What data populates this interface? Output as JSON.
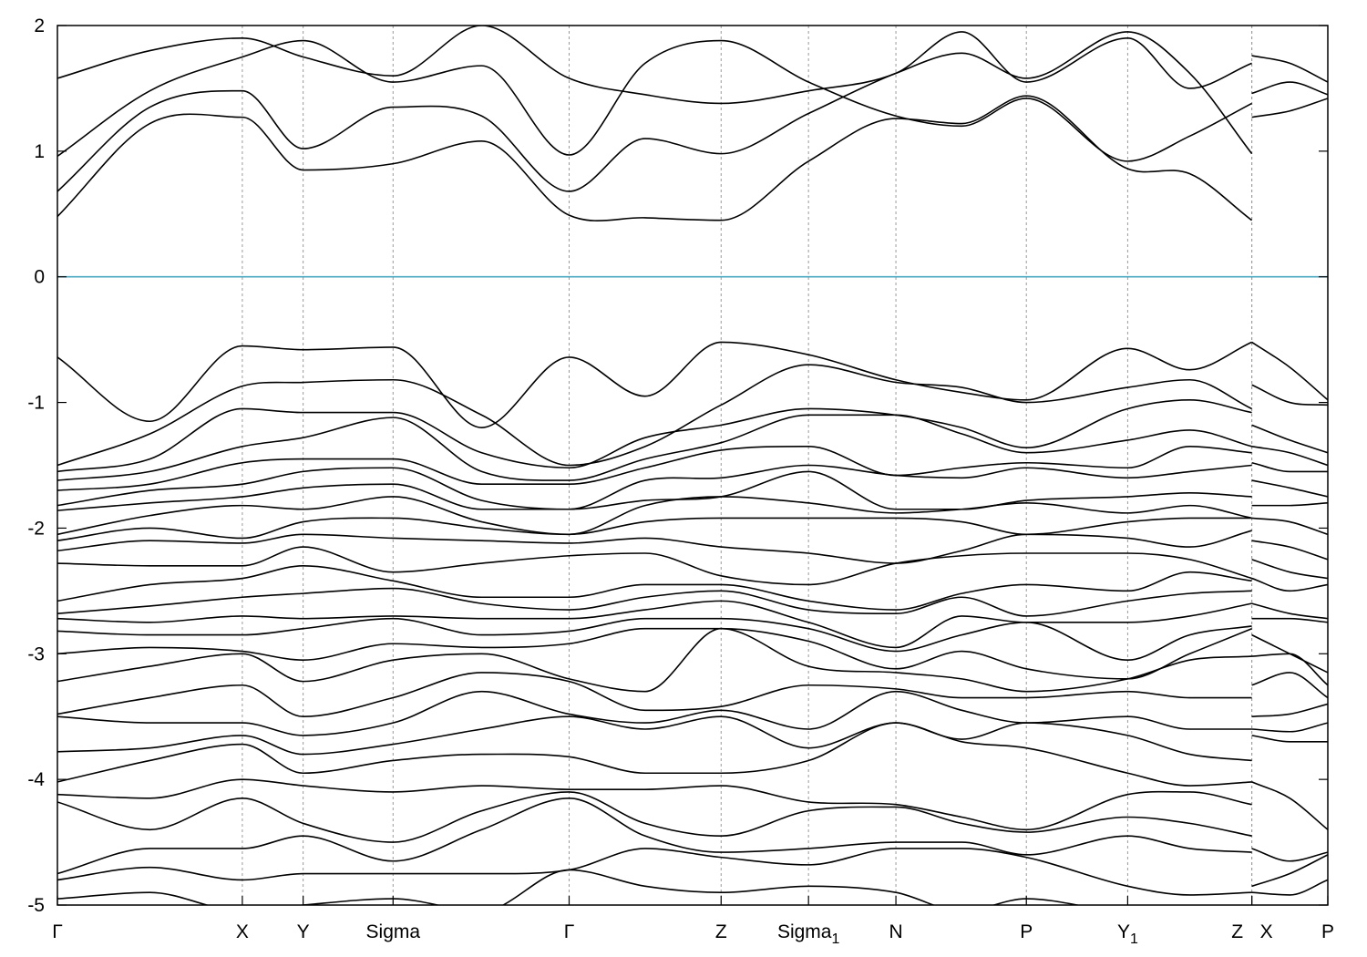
{
  "chart_data": {
    "type": "line",
    "title": "",
    "xlabel": "",
    "ylabel": "",
    "ylim": [
      -5,
      2
    ],
    "yticks": [
      -5,
      -4,
      -3,
      -2,
      -1,
      0,
      1,
      2
    ],
    "grid": "vertical dashed lines at high-symmetry points",
    "legend": "none",
    "colors": {
      "bands": "#000000",
      "fermi_level": "#4aa8c0",
      "kpoint_lines": "#9a9a9a"
    },
    "kpoints": [
      {
        "label": "Γ",
        "sub": "",
        "x": 0.0
      },
      {
        "label": "X",
        "sub": "",
        "x": 1.46
      },
      {
        "label": "Y",
        "sub": "",
        "x": 1.94
      },
      {
        "label": "Sigma",
        "sub": "",
        "x": 2.65
      },
      {
        "label": "Γ",
        "sub": "",
        "x": 4.04
      },
      {
        "label": "Z",
        "sub": "",
        "x": 5.24
      },
      {
        "label": "Sigma",
        "sub": "1",
        "x": 5.93
      },
      {
        "label": "N",
        "sub": "",
        "x": 6.62
      },
      {
        "label": "P",
        "sub": "",
        "x": 7.65
      },
      {
        "label": "Y",
        "sub": "1",
        "x": 8.45
      },
      {
        "label": "Z",
        "sub": "",
        "x": 9.43
      },
      {
        "label": "X",
        "sub": "",
        "x": 9.43
      },
      {
        "label": "P",
        "sub": "",
        "x": 10.03
      }
    ],
    "fermi_level": 0,
    "segments": [
      {
        "name": "main",
        "x": [
          0.0,
          0.73,
          1.46,
          1.94,
          2.65,
          3.35,
          4.04,
          4.64,
          5.24,
          5.93,
          6.62,
          7.14,
          7.65,
          8.45,
          8.94,
          9.43
        ],
        "series": [
          {
            "values": [
              0.48,
              1.22,
              1.27,
              0.85,
              0.9,
              1.08,
              0.49,
              0.47,
              0.45,
              0.92,
              1.26,
              1.22,
              1.44,
              0.86,
              0.82,
              0.45
            ]
          },
          {
            "values": [
              0.68,
              1.35,
              1.48,
              1.02,
              1.35,
              1.28,
              0.68,
              1.1,
              0.98,
              1.3,
              1.62,
              1.78,
              1.58,
              1.95,
              1.62,
              0.98
            ]
          },
          {
            "values": [
              0.96,
              1.48,
              1.75,
              1.88,
              1.55,
              1.68,
              0.97,
              1.7,
              1.88,
              1.55,
              1.28,
              1.2,
              1.42,
              0.92,
              1.12,
              1.38
            ]
          },
          {
            "values": [
              1.58,
              1.8,
              1.9,
              1.75,
              1.6,
              2.0,
              1.58,
              1.45,
              1.38,
              1.48,
              1.62,
              1.95,
              1.55,
              1.9,
              1.5,
              1.7
            ]
          },
          {
            "values": [
              -0.64,
              -1.15,
              -0.55,
              -0.58,
              -0.56,
              -1.2,
              -0.64,
              -0.95,
              -0.52,
              -0.62,
              -0.82,
              -0.92,
              -0.98,
              -0.57,
              -0.74,
              -0.52
            ]
          },
          {
            "values": [
              -1.5,
              -1.25,
              -0.87,
              -0.84,
              -0.82,
              -1.1,
              -1.5,
              -1.35,
              -1.02,
              -0.7,
              -0.84,
              -0.88,
              -1.0,
              -0.88,
              -0.82,
              -1.05
            ]
          },
          {
            "values": [
              -1.55,
              -1.45,
              -1.05,
              -1.08,
              -1.08,
              -1.4,
              -1.52,
              -1.28,
              -1.18,
              -1.05,
              -1.1,
              -1.2,
              -1.36,
              -1.05,
              -0.98,
              -1.08
            ]
          },
          {
            "values": [
              -1.62,
              -1.55,
              -1.35,
              -1.28,
              -1.12,
              -1.55,
              -1.62,
              -1.45,
              -1.32,
              -1.1,
              -1.1,
              -1.25,
              -1.4,
              -1.3,
              -1.22,
              -1.35
            ]
          },
          {
            "values": [
              -1.7,
              -1.65,
              -1.48,
              -1.45,
              -1.45,
              -1.65,
              -1.65,
              -1.52,
              -1.38,
              -1.35,
              -1.58,
              -1.52,
              -1.48,
              -1.52,
              -1.35,
              -1.4
            ]
          },
          {
            "values": [
              -1.82,
              -1.7,
              -1.65,
              -1.55,
              -1.52,
              -1.78,
              -1.85,
              -1.62,
              -1.6,
              -1.5,
              -1.58,
              -1.6,
              -1.52,
              -1.6,
              -1.55,
              -1.5
            ]
          },
          {
            "values": [
              -1.86,
              -1.8,
              -1.75,
              -1.68,
              -1.65,
              -1.85,
              -1.85,
              -1.78,
              -1.75,
              -1.55,
              -1.85,
              -1.85,
              -1.78,
              -1.75,
              -1.72,
              -1.75
            ]
          },
          {
            "values": [
              -2.05,
              -1.9,
              -1.82,
              -1.85,
              -1.75,
              -1.95,
              -2.05,
              -1.82,
              -1.75,
              -1.8,
              -1.88,
              -1.85,
              -1.8,
              -1.88,
              -1.82,
              -1.92
            ]
          },
          {
            "values": [
              -2.1,
              -2.0,
              -2.08,
              -1.95,
              -1.92,
              -2.0,
              -2.05,
              -1.95,
              -1.92,
              -1.92,
              -1.92,
              -1.95,
              -2.05,
              -1.95,
              -1.92,
              -1.92
            ]
          },
          {
            "values": [
              -2.18,
              -2.1,
              -2.12,
              -2.05,
              -2.08,
              -2.1,
              -2.12,
              -2.08,
              -2.15,
              -2.2,
              -2.28,
              -2.18,
              -2.05,
              -2.08,
              -2.15,
              -2.02
            ]
          },
          {
            "values": [
              -2.28,
              -2.3,
              -2.3,
              -2.15,
              -2.35,
              -2.28,
              -2.22,
              -2.2,
              -2.38,
              -2.45,
              -2.28,
              -2.22,
              -2.2,
              -2.2,
              -2.25,
              -2.4
            ]
          },
          {
            "values": [
              -2.58,
              -2.45,
              -2.4,
              -2.3,
              -2.42,
              -2.55,
              -2.55,
              -2.45,
              -2.45,
              -2.58,
              -2.65,
              -2.52,
              -2.45,
              -2.5,
              -2.35,
              -2.42
            ]
          },
          {
            "values": [
              -2.68,
              -2.62,
              -2.55,
              -2.52,
              -2.48,
              -2.6,
              -2.65,
              -2.55,
              -2.5,
              -2.65,
              -2.68,
              -2.55,
              -2.7,
              -2.58,
              -2.52,
              -2.5
            ]
          },
          {
            "values": [
              -2.72,
              -2.75,
              -2.7,
              -2.72,
              -2.7,
              -2.72,
              -2.72,
              -2.65,
              -2.58,
              -2.75,
              -2.95,
              -2.7,
              -2.75,
              -2.75,
              -2.7,
              -2.6
            ]
          },
          {
            "values": [
              -2.82,
              -2.85,
              -2.85,
              -2.8,
              -2.72,
              -2.85,
              -2.82,
              -2.72,
              -2.72,
              -2.8,
              -2.98,
              -2.85,
              -2.75,
              -3.05,
              -2.85,
              -2.78
            ]
          },
          {
            "values": [
              -3.0,
              -2.95,
              -2.98,
              -3.05,
              -2.92,
              -2.95,
              -2.92,
              -2.8,
              -2.8,
              -2.9,
              -3.12,
              -2.98,
              -3.12,
              -3.2,
              -3.0,
              -2.8
            ]
          },
          {
            "values": [
              -3.22,
              -3.1,
              -3.0,
              -3.22,
              -3.05,
              -3.0,
              -3.2,
              -3.3,
              -2.8,
              -3.1,
              -3.15,
              -3.2,
              -3.3,
              -3.2,
              -3.05,
              -3.02
            ]
          },
          {
            "values": [
              -3.48,
              -3.35,
              -3.25,
              -3.5,
              -3.35,
              -3.15,
              -3.22,
              -3.45,
              -3.42,
              -3.25,
              -3.28,
              -3.35,
              -3.35,
              -3.3,
              -3.35,
              -3.35
            ]
          },
          {
            "values": [
              -3.5,
              -3.55,
              -3.55,
              -3.65,
              -3.55,
              -3.3,
              -3.48,
              -3.55,
              -3.45,
              -3.6,
              -3.3,
              -3.45,
              -3.55,
              -3.5,
              -3.6,
              -3.6
            ]
          },
          {
            "values": [
              -3.78,
              -3.75,
              -3.65,
              -3.8,
              -3.72,
              -3.6,
              -3.5,
              -3.6,
              -3.5,
              -3.75,
              -3.55,
              -3.68,
              -3.55,
              -3.65,
              -3.8,
              -3.85
            ]
          },
          {
            "values": [
              -4.02,
              -3.85,
              -3.72,
              -3.95,
              -3.85,
              -3.8,
              -3.82,
              -3.95,
              -3.95,
              -3.85,
              -3.55,
              -3.7,
              -3.75,
              -3.95,
              -4.05,
              -4.02
            ]
          },
          {
            "values": [
              -4.12,
              -4.15,
              -4.0,
              -4.05,
              -4.1,
              -4.05,
              -4.08,
              -4.08,
              -4.05,
              -4.18,
              -4.2,
              -4.3,
              -4.4,
              -4.12,
              -4.1,
              -4.2
            ]
          },
          {
            "values": [
              -4.18,
              -4.4,
              -4.15,
              -4.35,
              -4.5,
              -4.25,
              -4.1,
              -4.35,
              -4.45,
              -4.25,
              -4.22,
              -4.35,
              -4.42,
              -4.3,
              -4.35,
              -4.45
            ]
          },
          {
            "values": [
              -4.75,
              -4.55,
              -4.55,
              -4.45,
              -4.65,
              -4.4,
              -4.15,
              -4.45,
              -4.58,
              -4.55,
              -4.5,
              -4.5,
              -4.6,
              -4.45,
              -4.55,
              -4.58
            ]
          },
          {
            "values": [
              -4.8,
              -4.7,
              -4.8,
              -4.75,
              -4.75,
              -4.75,
              -4.72,
              -4.55,
              -4.62,
              -4.68,
              -4.55,
              -4.55,
              -4.62,
              -4.85,
              -4.92,
              -4.9
            ]
          },
          {
            "values": [
              -4.95,
              -4.9,
              -5.05,
              -5.0,
              -4.95,
              -5.05,
              -4.72,
              -4.85,
              -4.9,
              -4.85,
              -4.9,
              -5.05,
              -4.95,
              -5.05,
              -5.05,
              -5.05
            ]
          }
        ]
      },
      {
        "name": "X-P",
        "x": [
          9.43,
          9.73,
          10.03
        ],
        "series": [
          {
            "values": [
              1.27,
              1.32,
              1.42
            ]
          },
          {
            "values": [
              1.46,
              1.55,
              1.45
            ]
          },
          {
            "values": [
              1.76,
              1.7,
              1.55
            ]
          },
          {
            "values": [
              -0.52,
              -0.72,
              -0.98
            ]
          },
          {
            "values": [
              -0.86,
              -1.0,
              -1.02
            ]
          },
          {
            "values": [
              -1.18,
              -1.3,
              -1.4
            ]
          },
          {
            "values": [
              -1.35,
              -1.4,
              -1.5
            ]
          },
          {
            "values": [
              -1.48,
              -1.55,
              -1.55
            ]
          },
          {
            "values": [
              -1.62,
              -1.68,
              -1.75
            ]
          },
          {
            "values": [
              -1.82,
              -1.82,
              -1.8
            ]
          },
          {
            "values": [
              -1.92,
              -1.95,
              -2.05
            ]
          },
          {
            "values": [
              -2.1,
              -2.15,
              -2.25
            ]
          },
          {
            "values": [
              -2.25,
              -2.35,
              -2.4
            ]
          },
          {
            "values": [
              -2.4,
              -2.5,
              -2.45
            ]
          },
          {
            "values": [
              -2.6,
              -2.68,
              -2.72
            ]
          },
          {
            "values": [
              -2.72,
              -2.72,
              -2.75
            ]
          },
          {
            "values": [
              -2.85,
              -3.0,
              -3.15
            ]
          },
          {
            "values": [
              -3.02,
              -3.0,
              -3.25
            ]
          },
          {
            "values": [
              -3.25,
              -3.15,
              -3.35
            ]
          },
          {
            "values": [
              -3.5,
              -3.48,
              -3.4
            ]
          },
          {
            "values": [
              -3.6,
              -3.62,
              -3.55
            ]
          },
          {
            "values": [
              -3.65,
              -3.7,
              -3.7
            ]
          },
          {
            "values": [
              -4.02,
              -4.15,
              -4.4
            ]
          },
          {
            "values": [
              -4.55,
              -4.65,
              -4.58
            ]
          },
          {
            "values": [
              -4.85,
              -4.75,
              -4.6
            ]
          },
          {
            "values": [
              -4.9,
              -4.92,
              -4.8
            ]
          }
        ]
      }
    ]
  }
}
